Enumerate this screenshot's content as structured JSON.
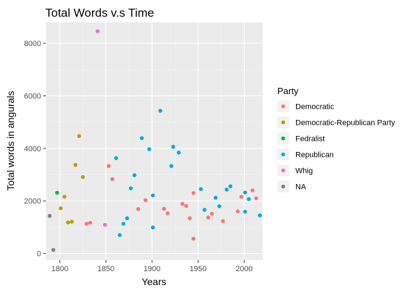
{
  "chart_data": {
    "type": "scatter",
    "title": "Total Words v.s Time",
    "xlabel": "Years",
    "ylabel": "Total words in angurals",
    "xlim": [
      1785,
      2020
    ],
    "ylim": [
      -250,
      8800
    ],
    "x_ticks": [
      1800,
      1850,
      1900,
      1950,
      2000
    ],
    "y_ticks": [
      0,
      2000,
      4000,
      6000,
      8000
    ],
    "grid": true,
    "legend": {
      "title": "Party",
      "position": "right"
    },
    "series": [
      {
        "name": "Democratic",
        "color": "#F8766D",
        "points": [
          [
            1829,
            1130
          ],
          [
            1833,
            1170
          ],
          [
            1853,
            3330
          ],
          [
            1857,
            2830
          ],
          [
            1885,
            1690
          ],
          [
            1893,
            2030
          ],
          [
            1913,
            1700
          ],
          [
            1917,
            1530
          ],
          [
            1933,
            1890
          ],
          [
            1937,
            1810
          ],
          [
            1941,
            1340
          ],
          [
            1945,
            560
          ],
          [
            1945,
            2300
          ],
          [
            1961,
            1370
          ],
          [
            1965,
            1510
          ],
          [
            1977,
            1230
          ],
          [
            1993,
            1600
          ],
          [
            1997,
            2160
          ],
          [
            2009,
            2400
          ],
          [
            2013,
            2100
          ]
        ]
      },
      {
        "name": "Democratic-Republican Party",
        "color": "#B79F00",
        "points": [
          [
            1801,
            1720
          ],
          [
            1805,
            2160
          ],
          [
            1809,
            1180
          ],
          [
            1813,
            1210
          ],
          [
            1817,
            3370
          ],
          [
            1821,
            4470
          ],
          [
            1825,
            2910
          ]
        ]
      },
      {
        "name": "Fedralist",
        "color": "#00BA38",
        "points": [
          [
            1797,
            2310
          ]
        ]
      },
      {
        "name": "Republican",
        "color": "#00A9DF",
        "points": [
          [
            1861,
            3630
          ],
          [
            1865,
            700
          ],
          [
            1869,
            1130
          ],
          [
            1873,
            1340
          ],
          [
            1877,
            2480
          ],
          [
            1881,
            2980
          ],
          [
            1889,
            4390
          ],
          [
            1897,
            3970
          ],
          [
            1901,
            2210
          ],
          [
            1901,
            990
          ],
          [
            1909,
            5430
          ],
          [
            1921,
            3330
          ],
          [
            1923,
            4060
          ],
          [
            1929,
            3840
          ],
          [
            1953,
            2450
          ],
          [
            1957,
            1660
          ],
          [
            1969,
            2120
          ],
          [
            1973,
            1800
          ],
          [
            1981,
            2430
          ],
          [
            1985,
            2560
          ],
          [
            2001,
            2320
          ],
          [
            2001,
            1590
          ],
          [
            2005,
            2070
          ],
          [
            2017,
            1450
          ]
        ]
      },
      {
        "name": "Whig",
        "color": "#F564E3",
        "points": [
          [
            1841,
            8460
          ],
          [
            1849,
            1090
          ]
        ]
      },
      {
        "name": "NA",
        "color": "#808080",
        "points": [
          [
            1789,
            1430
          ],
          [
            1793,
            135
          ]
        ]
      }
    ]
  }
}
